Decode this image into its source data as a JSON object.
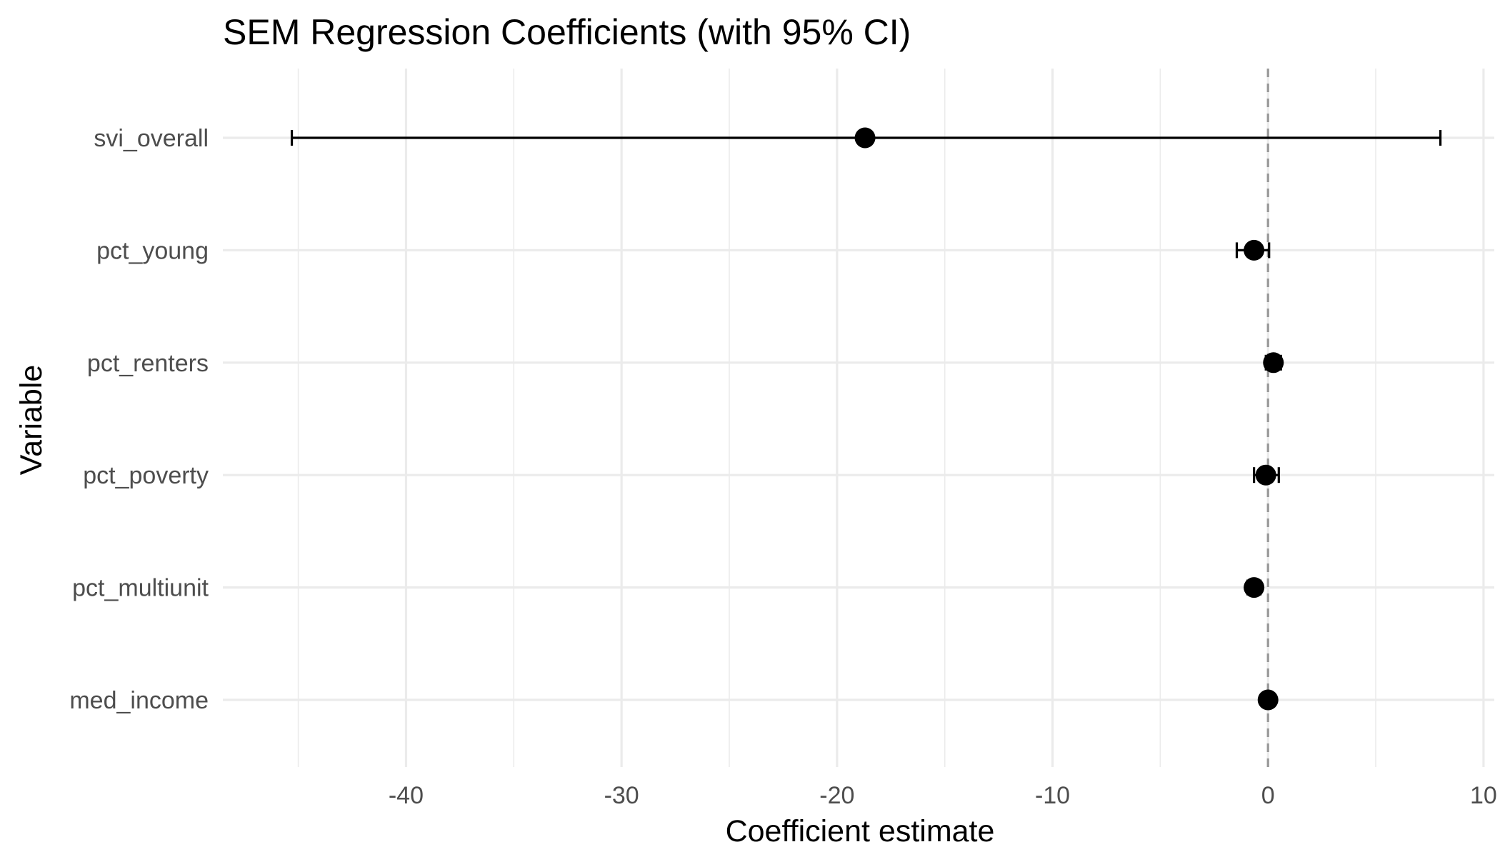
{
  "chart_data": {
    "type": "scatter",
    "title": "SEM Regression Coefficients (with 95% CI)",
    "xlabel": "Coefficient estimate",
    "ylabel": "Variable",
    "xlim": [
      -48.5,
      10.5
    ],
    "xticks": [
      -40,
      -30,
      -20,
      -10,
      0,
      10
    ],
    "xtick_labels": [
      "-40",
      "-30",
      "-20",
      "-10",
      "0",
      "10"
    ],
    "reference_line": 0,
    "grid": true,
    "legend": "none",
    "categories": [
      "svi_overall",
      "pct_young",
      "pct_renters",
      "pct_poverty",
      "pct_multiunit",
      "med_income"
    ],
    "series": [
      {
        "estimate": [
          -18.7,
          -0.65,
          0.25,
          -0.1,
          -0.65,
          0.0
        ],
        "ci_low": [
          -45.3,
          -1.45,
          -0.1,
          -0.65,
          -0.95,
          -0.05
        ],
        "ci_high": [
          8.0,
          0.05,
          0.6,
          0.5,
          -0.35,
          0.05
        ]
      }
    ],
    "colors": {
      "point": "#000000",
      "errorbar": "#000000",
      "reference_line": "#999999",
      "grid": "#ebebeb",
      "tick_text": "#4d4d4d"
    }
  }
}
